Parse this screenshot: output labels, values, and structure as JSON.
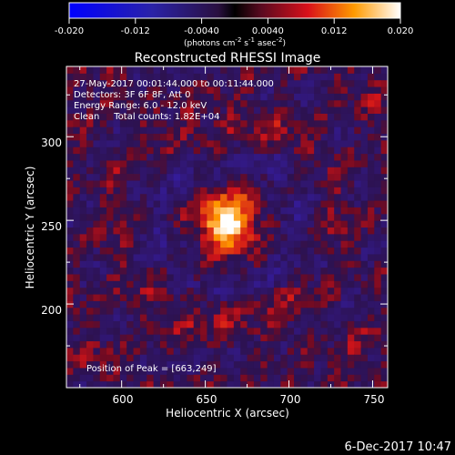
{
  "colorbar": {
    "ticks": [
      "-0.020",
      "-0.012",
      "-0.0040",
      "0.0040",
      "0.012",
      "0.020"
    ],
    "unit_main": "(photons cm",
    "unit_sup1": "-2",
    "unit_mid": " s",
    "unit_sup2": "-1",
    "unit_end": " asec",
    "unit_sup3": "-2",
    "unit_close": ")",
    "range": [
      -0.02,
      0.02
    ]
  },
  "header": {
    "time": "27-May-2017 00:01:44.000 to 00:11:44.000",
    "detectors": "Detectors: 3F 6F 8F, Att 0",
    "energy": "Energy Range: 6.0 - 12.0 keV",
    "clean": "Clean     Total counts: 1.82E+04"
  },
  "peak_text": "Position of Peak = [663,249]",
  "timestamp": "6-Dec-2017 10:47",
  "chart_data": {
    "type": "heatmap",
    "title": "Reconstructed RHESSI Image",
    "xlabel": "Heliocentric X (arcsec)",
    "ylabel": "Heliocentric Y (arcsec)",
    "xlim": [
      567,
      759
    ],
    "ylim": [
      150,
      342
    ],
    "xticks": [
      "600",
      "650",
      "700",
      "750"
    ],
    "yticks": [
      "200",
      "250",
      "300"
    ],
    "peak": [
      663,
      249
    ],
    "peak_value": 0.02
  }
}
